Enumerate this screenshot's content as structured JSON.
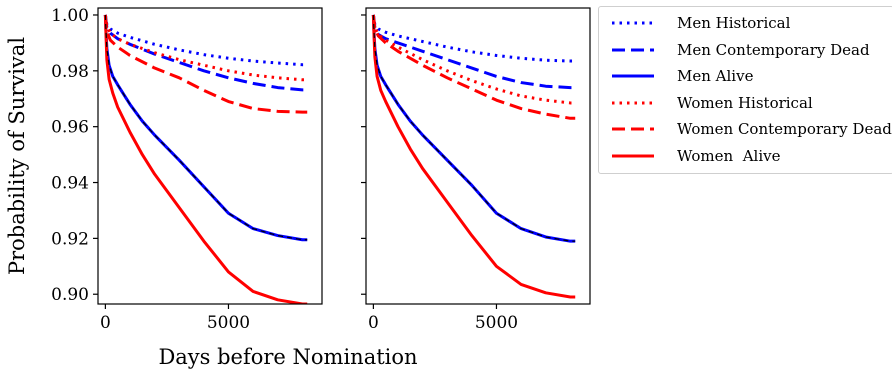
{
  "chart_data": [
    {
      "type": "line",
      "xlabel": "",
      "ylabel": "Probability of Survival",
      "xlim": [
        -300,
        8800
      ],
      "ylim": [
        0.8965,
        1.0025
      ],
      "xticks": [
        0,
        5000
      ],
      "xtick_labels": [
        "0",
        "5000"
      ],
      "yticks": [
        0.9,
        0.92,
        0.94,
        0.96,
        0.98,
        1.0
      ],
      "ytick_labels": [
        "0.90",
        "0.92",
        "0.94",
        "0.96",
        "0.98",
        "1.00"
      ],
      "grid": false,
      "series": [
        {
          "name": "Men Historical",
          "color": "#0000ff",
          "style": "dotted",
          "x": [
            0,
            60,
            200,
            500,
            1000,
            2000,
            3000,
            4000,
            5000,
            6000,
            7000,
            8000,
            8200
          ],
          "y": [
            1.0,
            0.9965,
            0.995,
            0.9935,
            0.992,
            0.9895,
            0.9875,
            0.9858,
            0.9845,
            0.9835,
            0.9828,
            0.9822,
            0.9822
          ]
        },
        {
          "name": "Men Contemporary Dead",
          "color": "#0000ff",
          "style": "dashed",
          "x": [
            0,
            60,
            200,
            500,
            1000,
            2000,
            3000,
            4000,
            5000,
            6000,
            7000,
            8000,
            8200
          ],
          "y": [
            1.0,
            0.9955,
            0.9935,
            0.9915,
            0.9895,
            0.986,
            0.983,
            0.98,
            0.9775,
            0.9755,
            0.974,
            0.9732,
            0.9732
          ]
        },
        {
          "name": "Men Alive",
          "color": "#0000ff",
          "style": "solid",
          "x": [
            0,
            20,
            60,
            150,
            300,
            500,
            1000,
            1500,
            2000,
            3000,
            4000,
            5000,
            6000,
            7000,
            8000,
            8200
          ],
          "y": [
            1.0,
            0.995,
            0.988,
            0.982,
            0.978,
            0.975,
            0.968,
            0.962,
            0.957,
            0.948,
            0.9385,
            0.929,
            0.9235,
            0.921,
            0.9195,
            0.9195
          ]
        },
        {
          "name": "Women Historical",
          "color": "#ff0000",
          "style": "dotted",
          "x": [
            0,
            60,
            200,
            500,
            1000,
            2000,
            3000,
            4000,
            5000,
            6000,
            7000,
            8000,
            8200
          ],
          "y": [
            1.0,
            0.996,
            0.9935,
            0.9915,
            0.9895,
            0.9865,
            0.984,
            0.982,
            0.98,
            0.9785,
            0.9775,
            0.9768,
            0.9768
          ]
        },
        {
          "name": "Women Contemporary Dead",
          "color": "#ff0000",
          "style": "dashed",
          "x": [
            0,
            60,
            200,
            500,
            1000,
            2000,
            3000,
            4000,
            5000,
            6000,
            7000,
            8000,
            8200
          ],
          "y": [
            1.0,
            0.994,
            0.991,
            0.9885,
            0.9855,
            0.981,
            0.9775,
            0.973,
            0.969,
            0.9665,
            0.9655,
            0.9652,
            0.9652
          ]
        },
        {
          "name": "Women  Alive",
          "color": "#ff0000",
          "style": "solid",
          "x": [
            0,
            20,
            60,
            150,
            300,
            500,
            1000,
            1500,
            2000,
            3000,
            4000,
            5000,
            6000,
            7000,
            8000,
            8200
          ],
          "y": [
            1.0,
            0.994,
            0.984,
            0.977,
            0.972,
            0.967,
            0.958,
            0.95,
            0.943,
            0.931,
            0.919,
            0.908,
            0.901,
            0.898,
            0.8965,
            0.8965
          ]
        }
      ]
    },
    {
      "type": "line",
      "xlabel": "",
      "ylabel": "",
      "xlim": [
        -300,
        8800
      ],
      "ylim": [
        0.8965,
        1.0025
      ],
      "xticks": [
        0,
        5000
      ],
      "xtick_labels": [
        "0",
        "5000"
      ],
      "yticks": [
        0.9,
        0.92,
        0.94,
        0.96,
        0.98,
        1.0
      ],
      "ytick_labels": [
        "",
        "",
        "",
        "",
        "",
        ""
      ],
      "grid": false,
      "series": [
        {
          "name": "Men Historical",
          "color": "#0000ff",
          "style": "dotted",
          "x": [
            0,
            60,
            200,
            500,
            1000,
            2000,
            3000,
            4000,
            5000,
            6000,
            7000,
            8000,
            8200
          ],
          "y": [
            1.0,
            0.9965,
            0.995,
            0.9938,
            0.9925,
            0.9905,
            0.9885,
            0.9868,
            0.9855,
            0.9845,
            0.9838,
            0.9835,
            0.9835
          ]
        },
        {
          "name": "Men Contemporary Dead",
          "color": "#0000ff",
          "style": "dashed",
          "x": [
            0,
            60,
            200,
            500,
            1000,
            2000,
            3000,
            4000,
            5000,
            6000,
            7000,
            8000,
            8200
          ],
          "y": [
            1.0,
            0.9955,
            0.993,
            0.9915,
            0.99,
            0.987,
            0.984,
            0.981,
            0.978,
            0.9758,
            0.9745,
            0.974,
            0.974
          ]
        },
        {
          "name": "Men Alive",
          "color": "#0000ff",
          "style": "solid",
          "x": [
            0,
            20,
            60,
            150,
            300,
            500,
            1000,
            1500,
            2000,
            3000,
            4000,
            5000,
            6000,
            7000,
            8000,
            8200
          ],
          "y": [
            1.0,
            0.995,
            0.988,
            0.982,
            0.978,
            0.975,
            0.968,
            0.962,
            0.957,
            0.948,
            0.939,
            0.929,
            0.9235,
            0.9205,
            0.919,
            0.919
          ]
        },
        {
          "name": "Women Historical",
          "color": "#ff0000",
          "style": "dotted",
          "x": [
            0,
            60,
            200,
            500,
            1000,
            2000,
            3000,
            4000,
            5000,
            6000,
            7000,
            8000,
            8200
          ],
          "y": [
            1.0,
            0.9955,
            0.993,
            0.991,
            0.9885,
            0.984,
            0.98,
            0.9765,
            0.9735,
            0.971,
            0.9695,
            0.9685,
            0.9685
          ]
        },
        {
          "name": "Women Contemporary Dead",
          "color": "#ff0000",
          "style": "dashed",
          "x": [
            0,
            60,
            200,
            500,
            1000,
            2000,
            3000,
            4000,
            5000,
            6000,
            7000,
            8000,
            8200
          ],
          "y": [
            1.0,
            0.995,
            0.9925,
            0.99,
            0.987,
            0.982,
            0.9775,
            0.9735,
            0.9695,
            0.9665,
            0.9645,
            0.963,
            0.963
          ]
        },
        {
          "name": "Women  Alive",
          "color": "#ff0000",
          "style": "solid",
          "x": [
            0,
            20,
            60,
            150,
            300,
            500,
            1000,
            1500,
            2000,
            3000,
            4000,
            5000,
            6000,
            7000,
            8000,
            8200
          ],
          "y": [
            1.0,
            0.994,
            0.985,
            0.978,
            0.973,
            0.969,
            0.96,
            0.952,
            0.945,
            0.933,
            0.921,
            0.91,
            0.9035,
            0.9005,
            0.899,
            0.899
          ]
        }
      ]
    }
  ],
  "figure": {
    "shared_xlabel": "Days before Nomination"
  },
  "legend": {
    "placement": "right",
    "items": [
      {
        "label": "Men Historical",
        "color": "#0000ff",
        "style": "dotted"
      },
      {
        "label": "Men Contemporary Dead",
        "color": "#0000ff",
        "style": "dashed"
      },
      {
        "label": "Men Alive",
        "color": "#0000ff",
        "style": "solid"
      },
      {
        "label": "Women Historical",
        "color": "#ff0000",
        "style": "dotted"
      },
      {
        "label": "Women Contemporary Dead",
        "color": "#ff0000",
        "style": "dashed"
      },
      {
        "label": "Women  Alive",
        "color": "#ff0000",
        "style": "solid"
      }
    ]
  }
}
